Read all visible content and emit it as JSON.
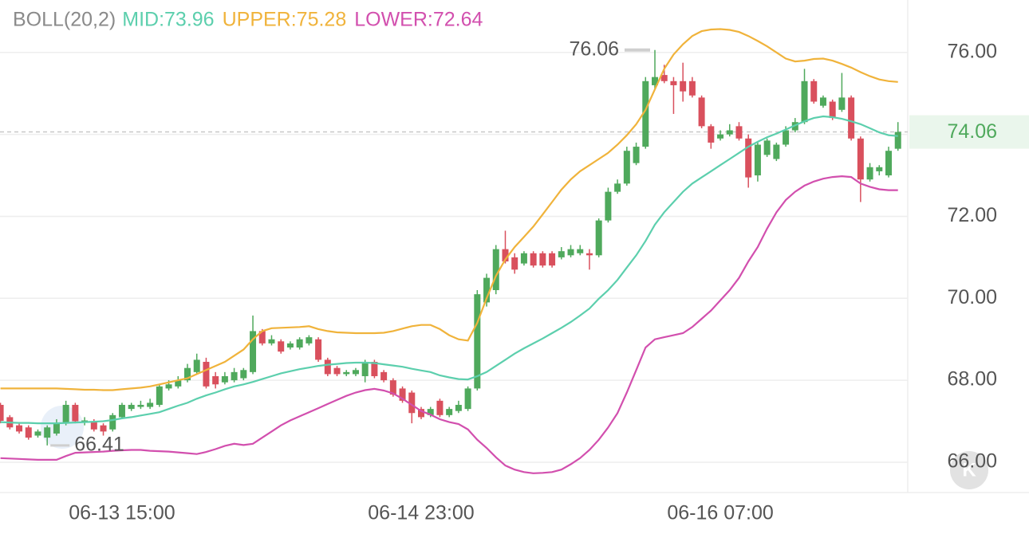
{
  "chart_data": {
    "type": "candlestick",
    "indicator": "BOLL(20,2)",
    "categories": [
      null,
      null,
      null,
      null,
      null,
      null,
      null,
      null,
      null,
      null,
      null,
      null,
      null,
      "06-13 15:00",
      null,
      null,
      null,
      null,
      null,
      null,
      null,
      null,
      null,
      null,
      null,
      null,
      null,
      null,
      null,
      null,
      null,
      null,
      null,
      null,
      null,
      null,
      null,
      null,
      null,
      null,
      null,
      null,
      null,
      null,
      null,
      "06-14 23:00",
      null,
      null,
      null,
      null,
      null,
      null,
      null,
      null,
      null,
      null,
      null,
      null,
      null,
      null,
      null,
      null,
      null,
      null,
      null,
      null,
      null,
      null,
      null,
      null,
      null,
      null,
      null,
      null,
      null,
      null,
      null,
      "06-16 07:00",
      null,
      null,
      null,
      null,
      null,
      null,
      null,
      null,
      null,
      null,
      null,
      null,
      null,
      null,
      null,
      null,
      null,
      null,
      null
    ],
    "open": [
      67.4,
      67.1,
      66.9,
      66.85,
      66.65,
      66.6,
      66.7,
      66.95,
      67.4,
      67.0,
      67.0,
      66.9,
      66.8,
      67.1,
      67.3,
      67.35,
      67.35,
      67.4,
      67.8,
      67.85,
      68.0,
      68.2,
      68.45,
      68.1,
      67.95,
      68.0,
      68.05,
      68.2,
      69.2,
      68.9,
      68.95,
      68.8,
      68.8,
      68.9,
      69.0,
      68.5,
      68.3,
      68.15,
      68.15,
      68.1,
      68.45,
      68.2,
      68.0,
      67.8,
      67.7,
      67.3,
      67.15,
      67.5,
      67.15,
      67.25,
      67.3,
      67.8,
      69.9,
      70.2,
      71.2,
      71.0,
      70.85,
      71.1,
      71.1,
      71.1,
      71.0,
      71.05,
      71.1,
      71.1,
      71.05,
      71.9,
      72.6,
      72.8,
      73.3,
      73.7,
      75.2,
      75.45,
      75.3,
      75.3,
      75.3,
      74.9,
      74.2,
      73.9,
      74.0,
      74.2,
      73.9,
      73.0,
      73.5,
      73.4,
      73.75,
      74.1,
      74.3,
      75.3,
      74.7,
      74.8,
      74.6,
      74.9,
      73.9,
      72.9,
      73.1,
      73.0,
      73.65
    ],
    "high": [
      67.45,
      67.15,
      66.95,
      66.9,
      66.8,
      66.9,
      67.05,
      67.5,
      67.45,
      67.1,
      67.05,
      66.95,
      67.2,
      67.45,
      67.45,
      67.5,
      67.55,
      67.9,
      68.0,
      68.1,
      68.4,
      68.65,
      68.55,
      68.2,
      68.2,
      68.3,
      68.3,
      69.58,
      69.25,
      69.1,
      69.0,
      68.95,
      69.05,
      69.1,
      69.05,
      68.55,
      68.35,
      68.25,
      68.3,
      68.5,
      68.5,
      68.25,
      68.05,
      67.85,
      67.75,
      67.35,
      67.35,
      67.55,
      67.35,
      67.5,
      67.85,
      70.2,
      70.6,
      71.3,
      71.65,
      71.1,
      71.15,
      71.15,
      71.15,
      71.15,
      71.25,
      71.3,
      71.3,
      71.2,
      71.95,
      72.7,
      72.9,
      73.7,
      73.8,
      75.4,
      76.06,
      75.7,
      75.4,
      75.75,
      75.4,
      74.95,
      74.25,
      74.1,
      74.25,
      74.3,
      74.0,
      73.8,
      73.9,
      73.8,
      74.2,
      74.4,
      75.6,
      75.35,
      74.95,
      74.85,
      75.5,
      74.95,
      73.95,
      73.3,
      73.25,
      73.7,
      74.3
    ],
    "low": [
      66.95,
      66.8,
      66.7,
      66.55,
      66.6,
      66.41,
      66.65,
      66.9,
      66.95,
      66.9,
      66.75,
      66.65,
      66.75,
      67.05,
      67.25,
      67.3,
      67.3,
      67.35,
      67.75,
      67.8,
      67.95,
      68.15,
      67.8,
      67.8,
      67.9,
      67.95,
      68.0,
      68.15,
      68.85,
      68.85,
      68.65,
      68.75,
      68.75,
      68.85,
      68.45,
      68.1,
      68.1,
      68.1,
      68.1,
      67.95,
      68.05,
      67.95,
      67.6,
      67.45,
      66.95,
      67.05,
      67.1,
      67.1,
      67.1,
      67.2,
      67.25,
      67.75,
      69.8,
      70.1,
      70.85,
      70.6,
      70.8,
      70.75,
      70.75,
      70.75,
      70.95,
      71.0,
      71.05,
      70.7,
      71.0,
      71.85,
      72.55,
      72.75,
      73.25,
      73.65,
      75.1,
      75.25,
      74.5,
      74.8,
      74.9,
      74.15,
      73.65,
      73.85,
      73.95,
      73.85,
      72.7,
      72.85,
      73.45,
      73.35,
      73.7,
      74.05,
      74.25,
      74.75,
      74.65,
      74.35,
      74.55,
      73.85,
      72.35,
      72.85,
      73.0,
      72.95,
      73.6
    ],
    "close": [
      67.01,
      66.85,
      66.75,
      66.6,
      66.75,
      66.85,
      66.95,
      67.4,
      67.0,
      67.02,
      66.8,
      66.75,
      67.15,
      67.4,
      67.4,
      67.4,
      67.45,
      67.85,
      67.9,
      68.0,
      68.3,
      68.5,
      67.85,
      67.9,
      68.1,
      68.2,
      68.25,
      69.2,
      68.9,
      69.0,
      68.7,
      68.9,
      69.0,
      69.05,
      68.5,
      68.15,
      68.15,
      68.2,
      68.25,
      68.45,
      68.1,
      68.0,
      67.65,
      67.5,
      67.2,
      67.1,
      67.3,
      67.15,
      67.3,
      67.4,
      67.8,
      70.1,
      70.5,
      71.2,
      70.9,
      70.7,
      71.1,
      70.8,
      70.8,
      70.8,
      71.15,
      71.2,
      71.2,
      71.05,
      71.9,
      72.6,
      72.8,
      73.6,
      73.7,
      75.3,
      75.4,
      75.3,
      75.2,
      75.05,
      74.95,
      74.2,
      73.8,
      74.0,
      74.1,
      73.9,
      72.95,
      73.75,
      73.85,
      73.75,
      74.1,
      74.3,
      75.3,
      74.8,
      74.9,
      74.4,
      74.9,
      73.9,
      72.9,
      73.2,
      73.2,
      73.6,
      74.06
    ],
    "up_color": "#4fa95c",
    "down_color": "#d9505d",
    "series": [
      {
        "name": "MID:73.96",
        "color": "#5ccfad",
        "values": [
          66.98,
          66.97,
          66.96,
          66.96,
          66.95,
          66.95,
          66.95,
          66.96,
          66.97,
          66.98,
          66.99,
          67.0,
          67.03,
          67.07,
          67.1,
          67.14,
          67.18,
          67.22,
          67.3,
          67.38,
          67.45,
          67.55,
          67.63,
          67.7,
          67.78,
          67.85,
          67.9,
          67.96,
          68.03,
          68.1,
          68.17,
          68.22,
          68.27,
          68.31,
          68.35,
          68.38,
          68.4,
          68.42,
          68.43,
          68.43,
          68.42,
          68.39,
          68.36,
          68.33,
          68.28,
          68.24,
          68.2,
          68.12,
          68.07,
          68.03,
          68.02,
          68.1,
          68.2,
          68.35,
          68.5,
          68.65,
          68.78,
          68.9,
          69.02,
          69.15,
          69.28,
          69.42,
          69.58,
          69.75,
          69.99,
          70.2,
          70.45,
          70.75,
          71.05,
          71.4,
          71.8,
          72.1,
          72.35,
          72.6,
          72.8,
          72.95,
          73.1,
          73.25,
          73.4,
          73.55,
          73.7,
          73.82,
          73.93,
          74.02,
          74.12,
          74.22,
          74.32,
          74.4,
          74.44,
          74.42,
          74.38,
          74.32,
          74.25,
          74.15,
          74.05,
          73.98,
          73.96
        ]
      },
      {
        "name": "UPPER:75.28",
        "color": "#f0b33b",
        "values": [
          67.8,
          67.8,
          67.8,
          67.8,
          67.8,
          67.8,
          67.8,
          67.79,
          67.78,
          67.77,
          67.77,
          67.76,
          67.76,
          67.78,
          67.8,
          67.82,
          67.85,
          67.9,
          67.95,
          68.0,
          68.05,
          68.15,
          68.25,
          68.35,
          68.45,
          68.6,
          68.75,
          69.0,
          69.2,
          69.27,
          69.28,
          69.29,
          69.3,
          69.32,
          69.25,
          69.2,
          69.17,
          69.16,
          69.15,
          69.15,
          69.15,
          69.16,
          69.2,
          69.26,
          69.32,
          69.35,
          69.35,
          69.25,
          69.1,
          69.0,
          68.97,
          69.4,
          70.0,
          70.55,
          70.95,
          71.25,
          71.5,
          71.75,
          72.05,
          72.35,
          72.65,
          72.9,
          73.1,
          73.25,
          73.4,
          73.55,
          73.75,
          73.98,
          74.25,
          74.6,
          75.1,
          75.6,
          75.95,
          76.2,
          76.4,
          76.52,
          76.56,
          76.57,
          76.55,
          76.5,
          76.4,
          76.28,
          76.15,
          76.0,
          75.85,
          75.78,
          75.8,
          75.84,
          75.85,
          75.8,
          75.72,
          75.63,
          75.52,
          75.42,
          75.34,
          75.3,
          75.28
        ]
      },
      {
        "name": "LOWER:72.64",
        "color": "#d24fae",
        "values": [
          66.1,
          66.09,
          66.08,
          66.07,
          66.06,
          66.06,
          66.06,
          66.15,
          66.23,
          66.24,
          66.25,
          66.26,
          66.28,
          66.29,
          66.3,
          66.3,
          66.28,
          66.27,
          66.26,
          66.24,
          66.22,
          66.2,
          66.25,
          66.32,
          66.4,
          66.45,
          66.42,
          66.45,
          66.6,
          66.75,
          66.9,
          67.02,
          67.12,
          67.22,
          67.32,
          67.42,
          67.52,
          67.62,
          67.7,
          67.76,
          67.79,
          67.75,
          67.68,
          67.55,
          67.4,
          67.25,
          67.16,
          67.05,
          66.98,
          66.93,
          66.8,
          66.55,
          66.35,
          66.12,
          65.92,
          65.82,
          65.76,
          65.73,
          65.74,
          65.76,
          65.82,
          65.95,
          66.1,
          66.3,
          66.55,
          66.85,
          67.2,
          67.7,
          68.25,
          68.8,
          69.0,
          69.05,
          69.1,
          69.15,
          69.3,
          69.5,
          69.7,
          69.95,
          70.2,
          70.5,
          70.9,
          71.25,
          71.7,
          72.1,
          72.4,
          72.6,
          72.75,
          72.85,
          72.92,
          72.96,
          72.98,
          72.96,
          72.8,
          72.72,
          72.66,
          72.64,
          72.64
        ]
      }
    ],
    "max_label": 76.06,
    "min_label": 66.41,
    "last_price": 74.06,
    "ylim": [
      65.26,
      77.28
    ],
    "yticks": [
      {
        "value": 66,
        "label": "66.00"
      },
      {
        "value": 68,
        "label": "68.00"
      },
      {
        "value": 70,
        "label": "70.00"
      },
      {
        "value": 72,
        "label": "72.00"
      },
      {
        "value": 74,
        "label": "74.00"
      },
      {
        "value": 76,
        "label": "76.00"
      }
    ],
    "grid": true
  }
}
